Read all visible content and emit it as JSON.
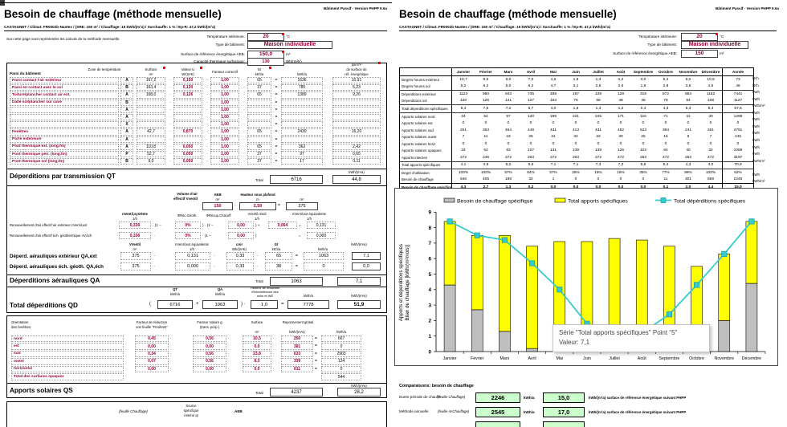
{
  "header": {
    "title": "Besoin de chauffage (méthode mensuelle)",
    "version": "Bâtiment Passif - Version PHPP 9.6a",
    "subtitle": "CASTAGNET / Climat: FR0002b-Nantes / (SRE: 150 m² / Chauffage: 15 kWh/(m²a) / Surchauffe: 1 % / Ep-R: 47,2 kWh/(m²a)",
    "note": "Sur cette page sont représentés les calculs de la méthode mensuelle."
  },
  "ops": {
    "mult": "·",
    "eq": "=",
    "open": "(",
    "close": ")",
    "plus": "+",
    "oneminus": "(1 −",
    "closemult": ") ·",
    "closeplus": ") +"
  },
  "left": {
    "params": [
      {
        "label": "Température intérieure:",
        "value": "20",
        "unit": "°C"
      },
      {
        "label": "Type de bâtiment:",
        "value": "Maison individuelle",
        "unit": ""
      },
      {
        "label": "Surface de référence énergétique AEB:",
        "value": "150,0",
        "unit": "m²"
      },
      {
        "label": "Capacité thermique surfacique:",
        "value": "130",
        "unit": "Wh/(m²K)"
      }
    ],
    "trans_table": {
      "headers": {
        "paroi": "Paroi du bâtiment",
        "zone": "Zone de température",
        "surface": "Surface",
        "surface_u": "m²",
        "u": "Valeur U",
        "u_u": "W/(m²K)",
        "factor": "Facteur correctif",
        "gt": "Gt",
        "gt_u": "kKh/a",
        "kwh_u": "kWh/a",
        "perm2_1": "par m²",
        "perm2_2": "de surface de",
        "perm2_3": "réf. énergétique"
      },
      "rows": [
        {
          "label": "Paroi contact l'air extérieur",
          "zone": "A",
          "surface": "167,2",
          "u": "0,150",
          "f": "1,00",
          "gt": "65",
          "kwh": "1636",
          "spec": "10,91"
        },
        {
          "label": "Paroi en contact avec le sol",
          "zone": "B",
          "surface": "163,4",
          "u": "0,130",
          "f": "1,00",
          "gt": "37",
          "kwh": "785",
          "spec": "5,23"
        },
        {
          "label": "Toiture/plancher contact air ext.",
          "zone": "A",
          "surface": "168,0",
          "u": "0,126",
          "f": "1,00",
          "gt": "65",
          "kwh": "1389",
          "spec": "9,26"
        },
        {
          "label": "Dalle sol/plancher sur cave",
          "zone": "B",
          "surface": "",
          "u": "",
          "f": "1,00",
          "gt": "",
          "kwh": "",
          "spec": ""
        },
        {
          "label": "",
          "zone": "A",
          "surface": "",
          "u": "",
          "f": "1,00",
          "gt": "",
          "kwh": "",
          "spec": ""
        },
        {
          "label": "",
          "zone": "A",
          "surface": "",
          "u": "",
          "f": "1,00",
          "gt": "",
          "kwh": "",
          "spec": ""
        },
        {
          "label": "",
          "zone": "X",
          "surface": "",
          "u": "",
          "f": "1,00",
          "gt": "",
          "kwh": "",
          "spec": ""
        },
        {
          "label": "Fenêtres",
          "zone": "A",
          "surface": "42,7",
          "u": "0,870",
          "f": "1,00",
          "gt": "65",
          "kwh": "2430",
          "spec": "16,20"
        },
        {
          "label": "Porte extérieure",
          "zone": "A",
          "surface": "",
          "u": "",
          "f": "1,00",
          "gt": "",
          "kwh": "",
          "spec": ""
        },
        {
          "label": "Pont thermique ext. (long.fm)",
          "zone": "A",
          "surface": "110,8",
          "u": "0,050",
          "f": "1,00",
          "gt": "65",
          "kwh": "362",
          "spec": "2,42"
        },
        {
          "label": "Pont thermique péri. (long.fm)",
          "zone": "P",
          "surface": "52,7",
          "u": "0,050",
          "f": "1,00",
          "gt": "37",
          "kwh": "97",
          "spec": "0,65"
        },
        {
          "label": "Pont thermique sol (long.fm)",
          "zone": "B",
          "surface": "9,0",
          "u": "0,050",
          "f": "1,00",
          "gt": "37",
          "kwh": "17",
          "spec": "0,11"
        }
      ]
    },
    "qt": {
      "title": "Déperditions par transmission QT",
      "total_label": "Total",
      "total": "6716",
      "spec": "44,8",
      "spec_unit": "kWh/(m²a)"
    },
    "vent": {
      "vol_label1": "Volume d'air",
      "vol_label2": "effectif Vventil",
      "aeb_label": "AEB",
      "aeb_unit": "m²",
      "aeb": "150",
      "h_label": "Hauteur sous plafond",
      "h_unit": "m",
      "h": "2,50",
      "vol_unit": "m³",
      "vol": "375",
      "n_sys_label": "nVentil,système",
      "n_sys_unit": "1/h",
      "phi_geo_label": "ΦRéc.Géoth.",
      "phi_hr_label": "ΦRécup.Chal,eff",
      "n_res_label": "nVentil,résid",
      "n_res_unit": "1/h",
      "n_eq_label": "nVentil,ext équivalente",
      "n_eq_unit": "1/h",
      "row1_label": "Renouvellement d'air effectif air extérieur nVentil,ext",
      "row2_label": "Renouvellement d'air effectif éch. géothermique nV,éch",
      "n1": "0,336",
      "phi1": "0%",
      "hr1": "0,00",
      "nres": "0,064",
      "neq1": "0,131",
      "n2": "0,336",
      "phi2": "0%",
      "hr2": "0,00",
      "neq2": "0,000",
      "v_label": "VVentil",
      "v_unit": "m³",
      "c_label": "cAir",
      "c_unit": "Wh/(m³K)",
      "gt_label": "Gt",
      "gt_unit": "kKh/a",
      "kwh_unit": "kWh/a",
      "spec_unit": "kWh/(m²a)",
      "qa1_label": "Déperd. aérauliques extérieur QA,ext",
      "qa2_label": "Déperd. aérauliques éch. géoth. QA,éch",
      "qa1": {
        "v": "375",
        "n": "0,131",
        "c": "0,33",
        "gt": "65",
        "kwh": "1063",
        "spec": "7,1"
      },
      "qa2": {
        "v": "375",
        "n": "0,000",
        "c": "0,33",
        "gt": "38",
        "kwh": "0",
        "spec": "0,0"
      }
    },
    "qa_bar": {
      "title": "Déperditions aérauliques QA",
      "total_label": "Total",
      "total": "1063",
      "spec": "7,1"
    },
    "qd": {
      "label": "Total déperditions QD",
      "qt_h": "QT",
      "qa_h": "QA",
      "kwh_h": "kWh/a",
      "factor_h1": "Facteur de réduction",
      "factor_h2": "d'intermittence des",
      "factor_h3": "nuits et WE",
      "qt": "6716",
      "qa": "1063",
      "factor": "1,0",
      "total": "7778",
      "spec": "51,9",
      "spec_unit": "kWh/(m²a)"
    },
    "solar": {
      "headers": {
        "orient1": "Orientation",
        "orient2": "des fenêtres",
        "red1": "Facteur de réduction",
        "red2": "voir feuille \"Fenêtres\"",
        "g1": "Facteur solaire g",
        "g2": "(trans. perp.)",
        "surface": "Surface",
        "surface_u": "m²",
        "ray": "Rayonnement global",
        "ray_u": "kWh/(m²a)",
        "kwh_u": "kWh/a"
      },
      "rows": [
        {
          "label": "nord",
          "f": "0,45",
          "g": "0,56",
          "s": "10,5",
          "r": "250",
          "kwh": "667"
        },
        {
          "label": "est",
          "f": "0,00",
          "g": "0,00",
          "s": "0,0",
          "r": "381",
          "kwh": "0"
        },
        {
          "label": "sud",
          "f": "0,34",
          "g": "0,56",
          "s": "23,8",
          "r": "633",
          "kwh": "2903"
        },
        {
          "label": "ouest",
          "f": "0,07",
          "g": "0,56",
          "s": "8,3",
          "r": "339",
          "kwh": "124"
        },
        {
          "label": "horizontal",
          "f": "0,00",
          "g": "0,00",
          "s": "0,0",
          "r": "611",
          "kwh": "0"
        }
      ],
      "total_label": "Total des surfaces opaques",
      "total": "544"
    },
    "qs_bar": {
      "title": "Apports solaires QS",
      "total_label": "Total",
      "total": "4237",
      "spec": "28,2",
      "spec_unit": "kWh/(m²a)"
    },
    "bottom": {
      "ref": "(feuille Chauffage)",
      "src1": "Source",
      "src2": "spécifique",
      "src3": "interne qI",
      "aeb": "AEB"
    }
  },
  "right": {
    "params": [
      {
        "label": "Température intérieure:",
        "value": "20",
        "unit": "°C"
      },
      {
        "label": "Type de bâtiment:",
        "value": "Maison individuelle",
        "unit": ""
      },
      {
        "label": "Surface de référence énergétique AEB:",
        "value": "150",
        "unit": "m²"
      }
    ],
    "monthly": {
      "months": [
        "Janvier",
        "Février",
        "Mars",
        "Avril",
        "Mai",
        "Juin",
        "Juillet",
        "Août",
        "Septembre",
        "Octobre",
        "Novembre",
        "Décembre"
      ],
      "year_label": "Année",
      "rows": [
        {
          "label": "Degrés heures extérieur",
          "unit": "kKh",
          "values": [
            "10,7",
            "9,5",
            "9,0",
            "7,0",
            "4,6",
            "1,9",
            "1,3",
            "1,2",
            "3,0",
            "5,4",
            "8,2",
            "10,9"
          ],
          "year": "73"
        },
        {
          "label": "Degrés heures sol",
          "unit": "kKh",
          "values": [
            "5,2",
            "5,2",
            "5,0",
            "5,2",
            "4,7",
            "3,1",
            "2,5",
            "2,6",
            "1,8",
            "2,9",
            "3,5",
            "4,5"
          ],
          "year": "46"
        },
        {
          "label": "Déperditions extérieur",
          "unit": "kWh",
          "sep": true,
          "values": [
            "1123",
            "990",
            "943",
            "735",
            "489",
            "197",
            "139",
            "129",
            "316",
            "572",
            "864",
            "1152"
          ],
          "year": "7441"
        },
        {
          "label": "Déperditions sol",
          "unit": "kWh",
          "values": [
            "120",
            "126",
            "141",
            "127",
            "154",
            "76",
            "68",
            "48",
            "45",
            "78",
            "94",
            "108"
          ],
          "year": "1127"
        },
        {
          "label": "Total déperditions spécifiques",
          "unit": "kWh/m²",
          "sep": true,
          "values": [
            "8,4",
            "7,5",
            "7,2",
            "5,7",
            "4,0",
            "1,8",
            "1,3",
            "1,2",
            "2,4",
            "4,3",
            "6,3",
            "8,4"
          ],
          "year": "57,6"
        },
        {
          "label": "Apports solaires nord",
          "unit": "kWh",
          "sep": true,
          "values": [
            "34",
            "54",
            "97",
            "140",
            "199",
            "221",
            "245",
            "171",
            "115",
            "71",
            "41",
            "30"
          ],
          "year": "1299"
        },
        {
          "label": "Apports solaires est",
          "unit": "kWh",
          "values": [
            "0",
            "0",
            "0",
            "0",
            "0",
            "0",
            "0",
            "0",
            "0",
            "0",
            "0",
            "0"
          ],
          "year": "0"
        },
        {
          "label": "Apports solaires sud",
          "unit": "kWh",
          "values": [
            "261",
            "353",
            "454",
            "449",
            "431",
            "413",
            "431",
            "482",
            "523",
            "394",
            "241",
            "261"
          ],
          "year": "4791"
        },
        {
          "label": "Apports solaires ouest",
          "unit": "kWh",
          "values": [
            "7",
            "11",
            "19",
            "25",
            "31",
            "34",
            "32",
            "30",
            "25",
            "15",
            "8",
            "7"
          ],
          "year": "245"
        },
        {
          "label": "Apports solaires horiz.",
          "unit": "kWh",
          "values": [
            "0",
            "0",
            "0",
            "0",
            "0",
            "0",
            "0",
            "0",
            "0",
            "0",
            "0",
            "0"
          ],
          "year": "0"
        },
        {
          "label": "Apports solaires opaques",
          "unit": "kWh",
          "values": [
            "34",
            "52",
            "83",
            "107",
            "131",
            "139",
            "139",
            "126",
            "102",
            "64",
            "40",
            "32"
          ],
          "year": "1059"
        },
        {
          "label": "Apports internes",
          "unit": "kWh",
          "values": [
            "272",
            "245",
            "272",
            "263",
            "272",
            "263",
            "272",
            "272",
            "263",
            "272",
            "263",
            "272"
          ],
          "year": "3197"
        },
        {
          "label": "Total apports spécifiques",
          "unit": "kWh/m²",
          "sep": true,
          "values": [
            "4,1",
            "4,8",
            "6,2",
            "6,6",
            "7,1",
            "7,1",
            "7,3",
            "7,2",
            "6,8",
            "5,4",
            "4,3",
            "4,0"
          ],
          "year": "70,9"
        },
        {
          "label": "Degré d'utilisation",
          "unit": "",
          "sep": true,
          "values": [
            "100%",
            "100%",
            "97%",
            "84%",
            "57%",
            "26%",
            "18%",
            "16%",
            "35%",
            "77%",
            "99%",
            "100%"
          ],
          "year": "62%"
        },
        {
          "label": "Besoin de chauffage",
          "unit": "kWh",
          "values": [
            "646",
            "405",
            "188",
            "32",
            "1",
            "0",
            "0",
            "0",
            "0",
            "11",
            "301",
            "659"
          ],
          "year": "2246"
        },
        {
          "label": "Besoin de chauffage spécifique",
          "unit": "kWh/m²",
          "bold": true,
          "values": [
            "4,3",
            "2,7",
            "1,3",
            "0,2",
            "0,0",
            "0,0",
            "0,0",
            "0,0",
            "0,0",
            "0,1",
            "2,0",
            "4,4"
          ],
          "year": "15,0"
        }
      ]
    },
    "comparison": {
      "title": "Comparaisons: besoin de chauffage",
      "rows": [
        {
          "label": "Durée période de chauffe",
          "ref": "(feuille Chauffage)",
          "kwh": "2246",
          "kwh_unit": "kWh/a",
          "spec": "15,0",
          "spec_unit": "kWh/(m²a) surface de référence énergétique suivant PHPP"
        },
        {
          "label": "Méthode annuelle",
          "ref": "(feuille AnChauffage)",
          "kwh": "2545",
          "kwh_unit": "kWh/a",
          "spec": "17,0",
          "spec_unit": "kWh/(m²a) surface de référence énergétique suivant PHPP"
        }
      ],
      "partial_third_row": true
    }
  },
  "chart_data": {
    "type": "bar",
    "stacked": true,
    "categories": [
      "Janvier",
      "Février",
      "Mars",
      "Avril",
      "Mai",
      "Juin",
      "Juillet",
      "Août",
      "Septembre",
      "Octobre",
      "Novembre",
      "Décembre"
    ],
    "series": [
      {
        "name": "Besoin de chauffage spécifique",
        "type": "bar",
        "color": "#bfbfbf",
        "values": [
          4.3,
          2.7,
          1.3,
          0.2,
          0.0,
          0.0,
          0.0,
          0.0,
          0.0,
          0.1,
          2.0,
          4.4
        ]
      },
      {
        "name": "Total apports spécifiques",
        "type": "bar",
        "color": "#ffff00",
        "values": [
          4.1,
          4.8,
          6.2,
          6.6,
          7.1,
          7.1,
          7.3,
          7.2,
          6.8,
          5.4,
          4.3,
          4.0
        ]
      },
      {
        "name": "Total dépérditions spécifiques",
        "type": "line",
        "color": "#33cccc",
        "values": [
          8.4,
          7.5,
          7.2,
          5.7,
          4.0,
          1.8,
          1.3,
          1.2,
          2.4,
          4.3,
          6.3,
          8.4
        ]
      }
    ],
    "ylabel_line1": "Apports et déperditions spécifiques",
    "ylabel_line2": "Bilan de chauffage [kWh/(m²mois)]",
    "ylim": [
      0,
      9
    ],
    "ytick_step": 1,
    "grid": false,
    "legend_position": "top",
    "tooltip": {
      "line1": "Série \"Total apports spécifiques\" Point \"5\"",
      "line2": "Valeur: 7,1"
    }
  }
}
